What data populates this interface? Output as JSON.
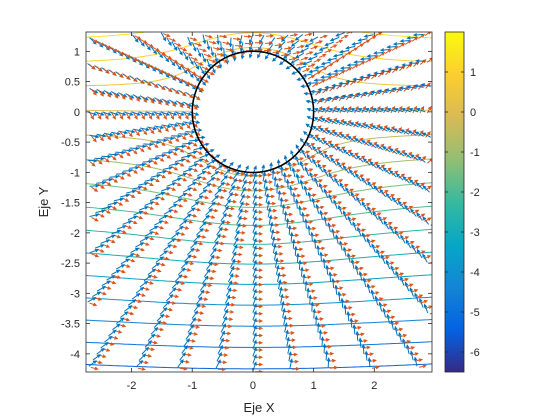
{
  "chart_data": {
    "type": "contour_quiver",
    "xlabel": "Eje X",
    "ylabel": "Eje Y",
    "xlim": [
      -2.75,
      2.95
    ],
    "ylim": [
      -4.3,
      1.32
    ],
    "x_ticks": [
      {
        "value": -2,
        "label": "-2"
      },
      {
        "value": -1,
        "label": "-1"
      },
      {
        "value": 0,
        "label": "0"
      },
      {
        "value": 1,
        "label": "1"
      },
      {
        "value": 2,
        "label": "2"
      }
    ],
    "y_ticks": [
      {
        "value": 1,
        "label": "1"
      },
      {
        "value": 0.5,
        "label": "0.5"
      },
      {
        "value": 0,
        "label": "0"
      },
      {
        "value": -0.5,
        "label": "-0.5"
      },
      {
        "value": -1,
        "label": "-1"
      },
      {
        "value": -1.5,
        "label": "-1.5"
      },
      {
        "value": -2,
        "label": "-2"
      },
      {
        "value": -2.5,
        "label": "-2.5"
      },
      {
        "value": -3,
        "label": "-3"
      },
      {
        "value": -3.5,
        "label": "-3.5"
      },
      {
        "value": -4,
        "label": "-4"
      }
    ],
    "circle": {
      "center": [
        0,
        0
      ],
      "radius": 1,
      "color": "#000000"
    },
    "contour_levels": [
      -6,
      -5.5,
      -5,
      -4.5,
      -4,
      -3.5,
      -3,
      -2.5,
      -2,
      -1.5,
      -1,
      -0.5,
      0,
      0.5,
      1,
      1.5
    ],
    "quiver_colors": {
      "field_a": "#0072bd",
      "field_b": "#d95319"
    },
    "colorbar": {
      "range": [
        -6.5,
        2
      ],
      "colormap": "parula",
      "ticks": [
        {
          "value": 1,
          "label": "1"
        },
        {
          "value": 0,
          "label": "0"
        },
        {
          "value": -1,
          "label": "-1"
        },
        {
          "value": -2,
          "label": "-2"
        },
        {
          "value": -3,
          "label": "-3"
        },
        {
          "value": -4,
          "label": "-4"
        },
        {
          "value": -5,
          "label": "-5"
        },
        {
          "value": -6,
          "label": "-6"
        }
      ]
    },
    "grid": false
  }
}
